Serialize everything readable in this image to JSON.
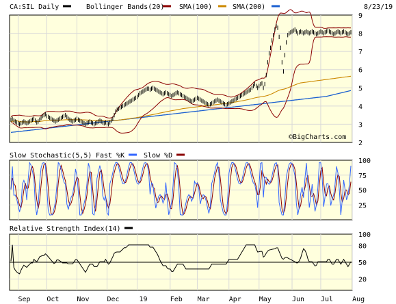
{
  "header": {
    "symbol_label": "CA:SIL Daily",
    "date": "8/23/19",
    "legend": [
      {
        "label": "Bollinger Bands(20)",
        "color": "#8b0000"
      },
      {
        "label": "SMA(100)",
        "color": "#cc8800"
      },
      {
        "label": "SMA(200)",
        "color": "#1a5fd0"
      }
    ]
  },
  "watermark": "©BigCharts.com",
  "colors": {
    "panel_bg": "#ffffdd",
    "grid": "#d8d8d8",
    "price": "#000000",
    "bollinger": "#8b0000",
    "sma100": "#cc8800",
    "sma200": "#1a5fd0",
    "stoch_fast": "#3366ff",
    "stoch_slow": "#8b0000",
    "rsi": "#000000"
  },
  "chart_data": [
    {
      "type": "line",
      "title": "CA:SIL Daily",
      "x_tick_labels": [
        "Sep",
        "Oct",
        "Nov",
        "Dec",
        "19",
        "Feb",
        "Mar",
        "Apr",
        "May",
        "Jun",
        "Jul",
        "Aug"
      ],
      "x_tick_index": [
        5,
        25,
        46,
        67,
        88,
        111,
        130,
        152,
        173,
        196,
        216,
        238
      ],
      "y_ticks": [
        2,
        3,
        4,
        5,
        6,
        7,
        8,
        9
      ],
      "ylim": [
        2,
        9
      ],
      "grid": true,
      "legend_position": "top",
      "series": [
        {
          "name": "CA:SIL Daily",
          "values": [
            3.25,
            3.3,
            3.2,
            3.15,
            3.1,
            3.05,
            3.0,
            3.05,
            3.1,
            3.15,
            3.1,
            3.05,
            3.1,
            3.15,
            3.2,
            3.25,
            3.3,
            3.2,
            3.1,
            3.15,
            3.25,
            3.35,
            3.45,
            3.5,
            3.55,
            3.45,
            3.4,
            3.35,
            3.3,
            3.25,
            3.2,
            3.15,
            3.2,
            3.25,
            3.3,
            3.35,
            3.4,
            3.45,
            3.5,
            3.4,
            3.3,
            3.25,
            3.2,
            3.15,
            3.2,
            3.25,
            3.3,
            3.25,
            3.2,
            3.15,
            3.1,
            3.05,
            3.0,
            3.05,
            3.1,
            3.15,
            3.1,
            3.05,
            3.0,
            3.05,
            3.1,
            3.15,
            3.2,
            3.15,
            3.1,
            3.05,
            3.1,
            3.05,
            3.0,
            3.1,
            3.2,
            3.3,
            3.5,
            3.7,
            3.8,
            3.85,
            3.9,
            3.95,
            4.0,
            4.05,
            4.1,
            4.15,
            4.2,
            4.25,
            4.3,
            4.35,
            4.4,
            4.45,
            4.5,
            4.6,
            4.7,
            4.75,
            4.8,
            4.85,
            4.9,
            4.95,
            4.95,
            4.9,
            4.95,
            5.0,
            4.95,
            4.9,
            4.85,
            4.8,
            4.75,
            4.7,
            4.65,
            4.7,
            4.75,
            4.7,
            4.65,
            4.6,
            4.55,
            4.6,
            4.65,
            4.7,
            4.75,
            4.7,
            4.65,
            4.6,
            4.55,
            4.5,
            4.45,
            4.4,
            4.35,
            4.3,
            4.25,
            4.3,
            4.35,
            4.4,
            4.45,
            4.4,
            4.35,
            4.3,
            4.25,
            4.2,
            4.15,
            4.1,
            4.05,
            4.1,
            4.15,
            4.2,
            4.25,
            4.3,
            4.35,
            4.3,
            4.25,
            4.2,
            4.15,
            4.1,
            4.05,
            4.1,
            4.15,
            4.2,
            4.25,
            4.3,
            4.35,
            4.4,
            4.45,
            4.5,
            4.55,
            4.6,
            4.65,
            4.7,
            4.75,
            4.8,
            4.85,
            4.9,
            5.0,
            5.1,
            5.2,
            5.1,
            5.0,
            5.1,
            5.2,
            5.25,
            5.0,
            5.2,
            5.7,
            6.4,
            6.9,
            7.2,
            7.6,
            7.9,
            8.2,
            8.4,
            8.3,
            7.8,
            7.2,
            6.4,
            5.9,
            6.8,
            7.5,
            7.9,
            8.0,
            8.05,
            8.1,
            8.15,
            8.2,
            8.1,
            8.0,
            8.05,
            8.1,
            8.05,
            8.0,
            8.05,
            8.1,
            8.05,
            8.0,
            8.05,
            8.1,
            8.05,
            8.0,
            7.95,
            8.0,
            8.05,
            8.1,
            8.05,
            8.0,
            8.05,
            8.1,
            8.15,
            8.1,
            8.05,
            8.0,
            7.95,
            8.0,
            8.05,
            8.1,
            8.05,
            8.0,
            8.05,
            8.1,
            8.05,
            8.0,
            7.95,
            8.0,
            8.05
          ]
        },
        {
          "name": "Bollinger Bands(20) upper",
          "values": []
        },
        {
          "name": "Bollinger Bands(20) lower",
          "values": []
        },
        {
          "name": "SMA(100)",
          "values": []
        },
        {
          "name": "SMA(200)",
          "values": []
        }
      ]
    },
    {
      "type": "line",
      "title": "Slow Stochastic(5,5)",
      "legend": [
        {
          "label": "Fast %K",
          "color": "#3366ff"
        },
        {
          "label": "Slow %D",
          "color": "#8b0000"
        }
      ],
      "y_ticks": [
        25,
        50,
        75,
        100
      ],
      "ylim": [
        0,
        100
      ],
      "grid": true,
      "series": [
        {
          "name": "Fast %K",
          "values": []
        },
        {
          "name": "Slow %D",
          "values": []
        }
      ]
    },
    {
      "type": "line",
      "title": "Relative Strength Index(14)",
      "y_ticks": [
        20,
        50,
        80,
        100
      ],
      "ylim": [
        0,
        100
      ],
      "reference_line": 50,
      "grid": true,
      "series": [
        {
          "name": "Relative Strength Index(14)",
          "values": []
        }
      ]
    }
  ]
}
